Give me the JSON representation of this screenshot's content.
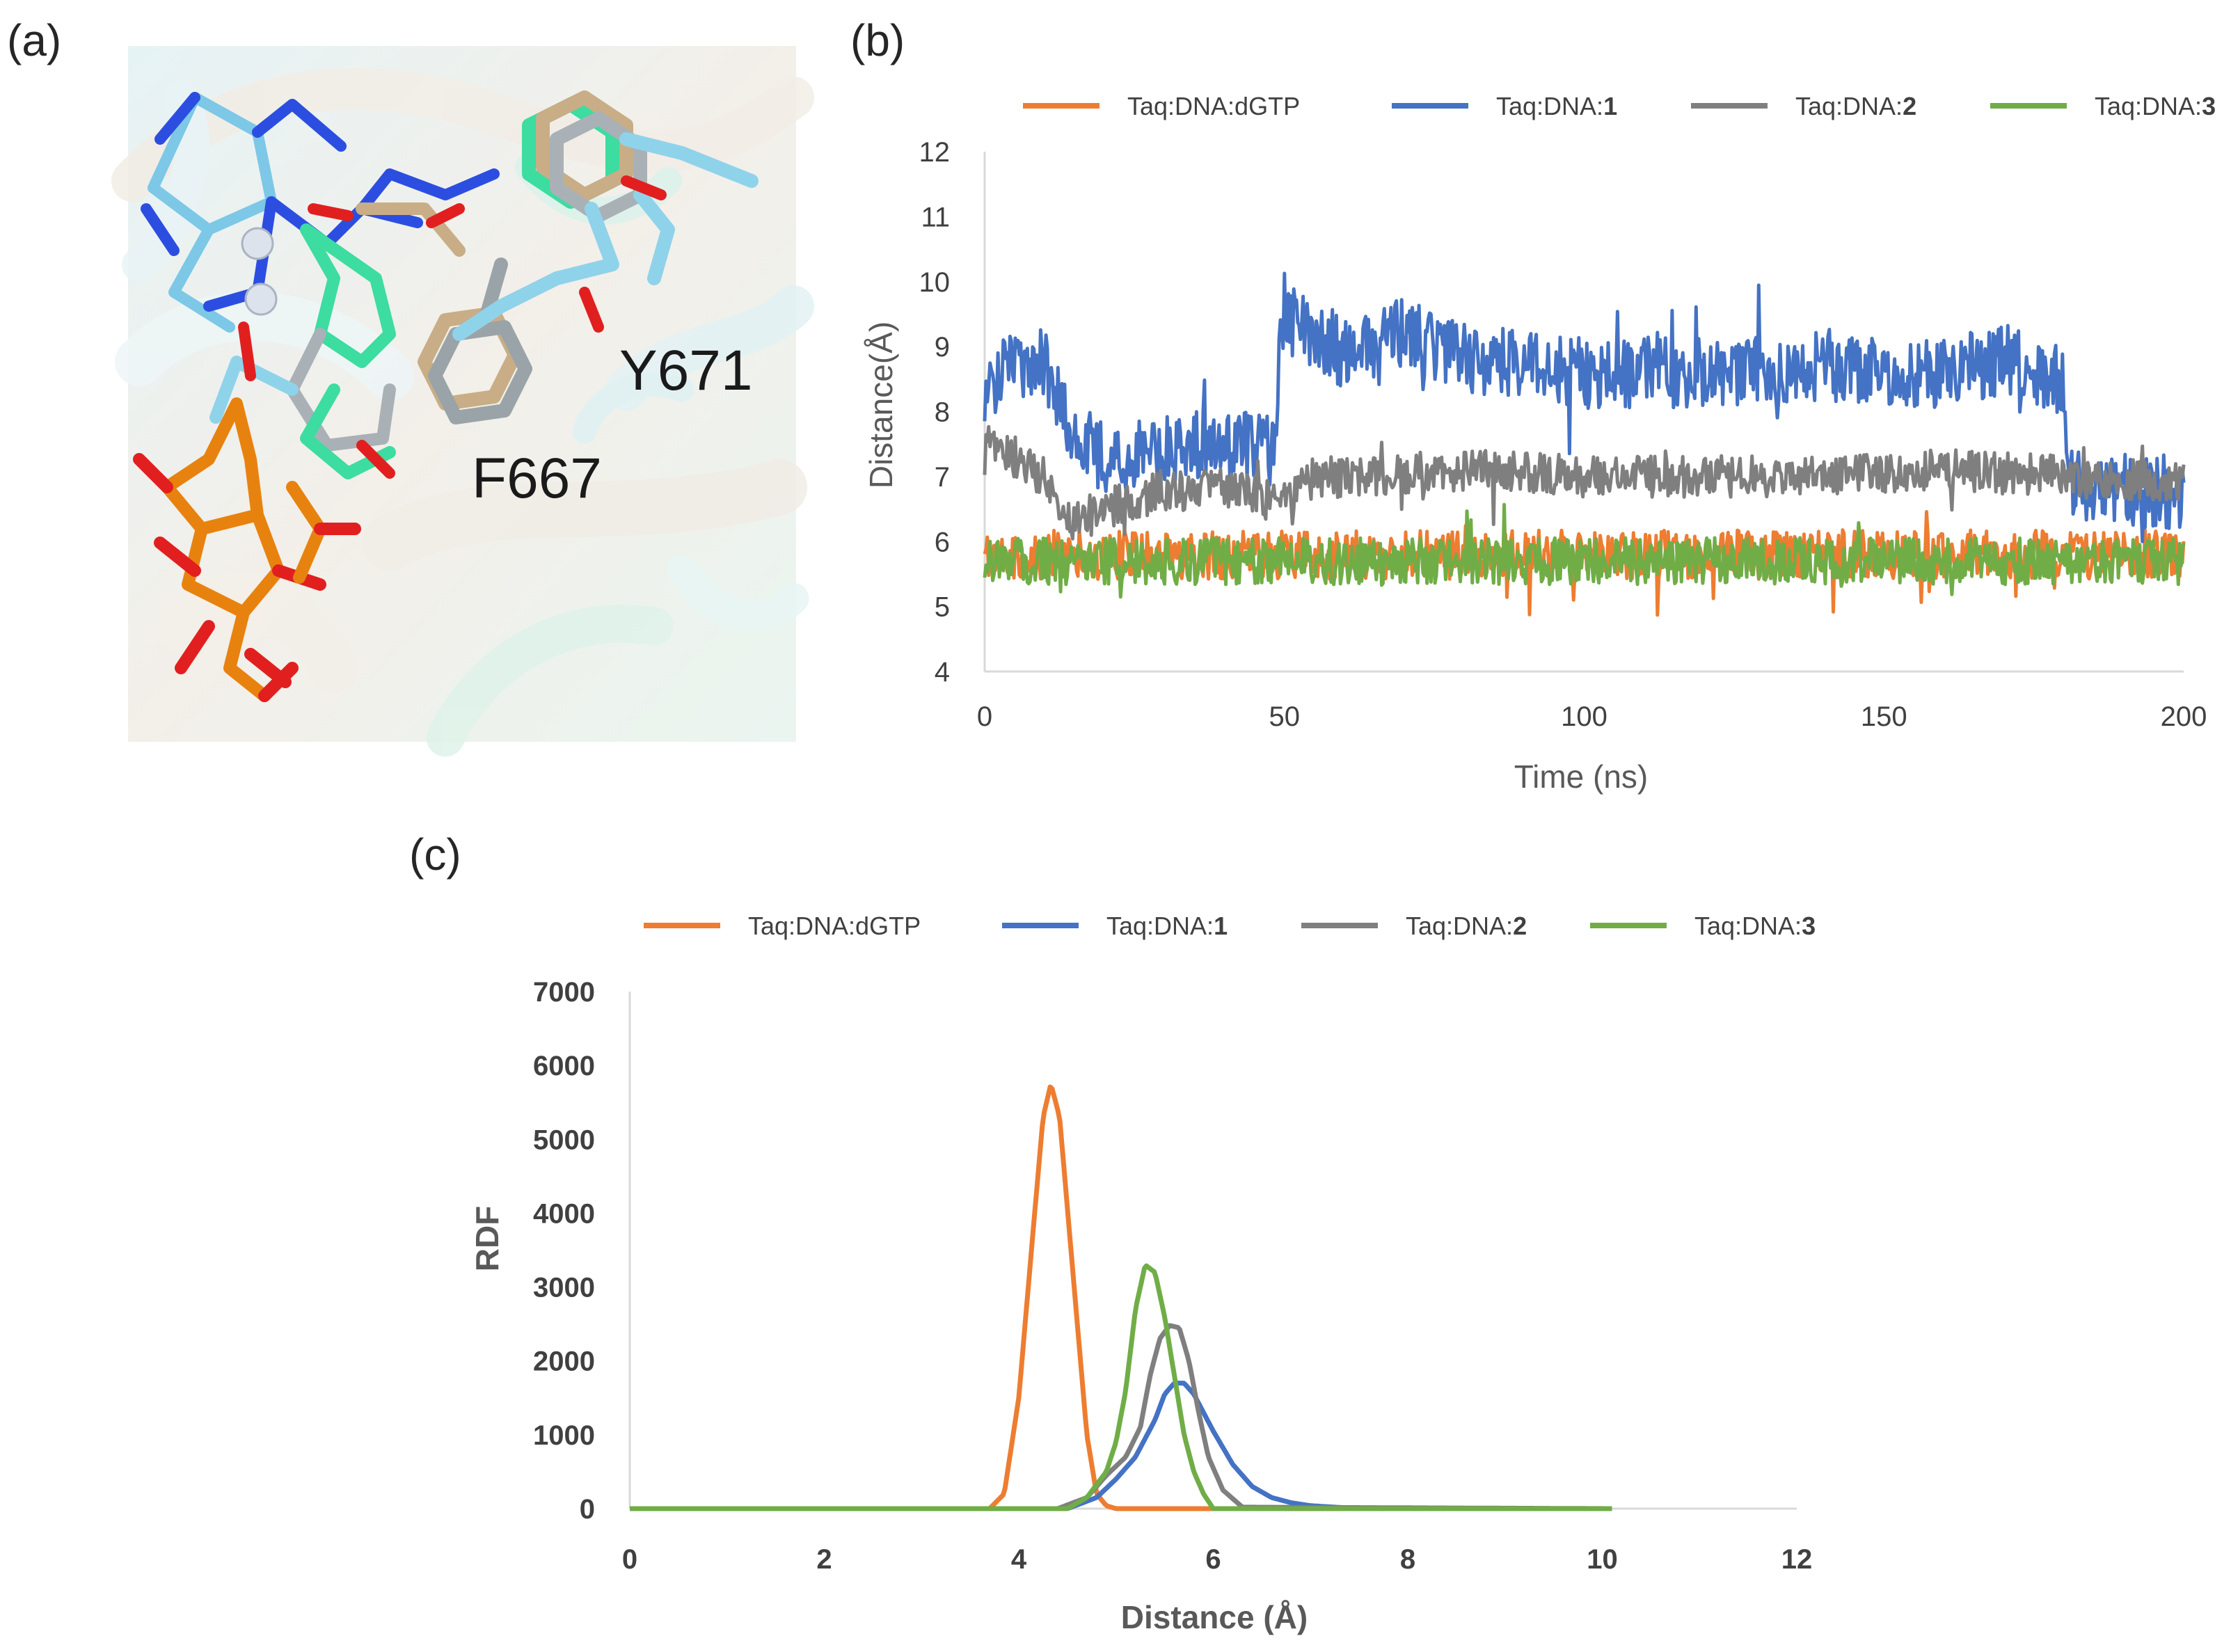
{
  "panels": {
    "a": "(a)",
    "b": "(b)",
    "c": "(c)"
  },
  "molecule": {
    "labels": [
      "Y671",
      "F667"
    ]
  },
  "colors": {
    "Taq:DNA:dGTP": "#ED7D31",
    "Taq:DNA:1": "#4472C4",
    "Taq:DNA:2": "#7F7F7F",
    "Taq:DNA:3": "#70AD47"
  },
  "chart_data": [
    {
      "type": "line",
      "title": "",
      "xlabel": "Time (ns)",
      "ylabel": "Distance(Å)",
      "xlim": [
        0,
        200
      ],
      "ylim": [
        4,
        12
      ],
      "xticks": [
        "0",
        "50",
        "100",
        "150",
        "200"
      ],
      "yticks": [
        "4",
        "5",
        "6",
        "7",
        "8",
        "9",
        "10",
        "11",
        "12"
      ],
      "legend_position": "top",
      "series": [
        {
          "name": "Taq:DNA:dGTP",
          "key": "dGTP",
          "x": [
            0,
            20,
            40,
            60,
            80,
            100,
            120,
            140,
            160,
            180,
            200
          ],
          "values": [
            5.8,
            5.8,
            5.8,
            5.8,
            5.8,
            5.8,
            5.8,
            5.8,
            5.8,
            5.8,
            5.8
          ]
        },
        {
          "name": "Taq:DNA:1",
          "key": "c1",
          "x": [
            0,
            5,
            10,
            15,
            20,
            30,
            40,
            48,
            50,
            55,
            60,
            70,
            80,
            100,
            120,
            140,
            160,
            170,
            180,
            181,
            190,
            200
          ],
          "values": [
            8.3,
            8.8,
            8.7,
            7.6,
            7.3,
            7.4,
            7.5,
            7.4,
            9.6,
            9.2,
            8.9,
            9.2,
            8.8,
            8.6,
            8.6,
            8.7,
            8.6,
            8.8,
            8.5,
            6.9,
            6.8,
            6.7
          ]
        },
        {
          "name": "Taq:DNA:2",
          "key": "c2",
          "x": [
            0,
            5,
            10,
            15,
            20,
            30,
            40,
            50,
            55,
            60,
            80,
            100,
            120,
            140,
            160,
            180,
            200
          ],
          "values": [
            7.5,
            7.3,
            7.0,
            6.3,
            6.5,
            6.8,
            6.8,
            6.6,
            7.0,
            7.0,
            7.1,
            7.0,
            7.0,
            7.0,
            7.1,
            7.0,
            6.9
          ]
        },
        {
          "name": "Taq:DNA:3",
          "key": "c3",
          "x": [
            0,
            20,
            40,
            60,
            80,
            100,
            120,
            140,
            160,
            180,
            200
          ],
          "values": [
            5.7,
            5.7,
            5.7,
            5.7,
            5.7,
            5.7,
            5.7,
            5.7,
            5.7,
            5.7,
            5.7
          ]
        }
      ]
    },
    {
      "type": "line",
      "title": "",
      "xlabel": "Distance (Å)",
      "ylabel": "RDF",
      "xlim": [
        0,
        12
      ],
      "ylim": [
        0,
        7000
      ],
      "xticks": [
        "0",
        "2",
        "4",
        "6",
        "8",
        "10",
        "12"
      ],
      "yticks": [
        "0",
        "1000",
        "2000",
        "3000",
        "4000",
        "5000",
        "6000",
        "7000"
      ],
      "legend_position": "top",
      "series": [
        {
          "name": "Taq:DNA:dGTP",
          "key": "dGTP",
          "x": [
            0,
            3.7,
            3.85,
            4.0,
            4.15,
            4.25,
            4.33,
            4.42,
            4.55,
            4.7,
            4.8,
            4.9,
            5.0,
            10.1
          ],
          "values": [
            0,
            0,
            200,
            1500,
            3800,
            5300,
            5750,
            5300,
            3300,
            1000,
            200,
            40,
            0,
            0
          ]
        },
        {
          "name": "Taq:DNA:1",
          "key": "c1",
          "x": [
            0,
            4.5,
            4.8,
            5.0,
            5.2,
            5.4,
            5.5,
            5.6,
            5.7,
            5.8,
            5.9,
            6.0,
            6.2,
            6.4,
            6.6,
            6.8,
            7.0,
            7.5,
            10.1
          ],
          "values": [
            0,
            0,
            150,
            400,
            700,
            1200,
            1550,
            1700,
            1700,
            1550,
            1300,
            1050,
            600,
            300,
            150,
            80,
            40,
            0,
            0
          ]
        },
        {
          "name": "Taq:DNA:2",
          "key": "c2",
          "x": [
            0,
            4.4,
            4.7,
            4.9,
            5.1,
            5.25,
            5.35,
            5.45,
            5.55,
            5.65,
            5.75,
            5.85,
            5.95,
            6.1,
            6.3,
            10.1
          ],
          "values": [
            0,
            0,
            150,
            450,
            700,
            1100,
            1800,
            2300,
            2480,
            2450,
            2000,
            1300,
            700,
            250,
            20,
            0
          ]
        },
        {
          "name": "Taq:DNA:3",
          "key": "c3",
          "x": [
            0,
            4.5,
            4.7,
            4.9,
            5.0,
            5.1,
            5.2,
            5.3,
            5.4,
            5.5,
            5.6,
            5.7,
            5.8,
            5.9,
            6.0,
            10.1
          ],
          "values": [
            0,
            0,
            150,
            500,
            900,
            1600,
            2700,
            3300,
            3200,
            2600,
            1800,
            1000,
            500,
            200,
            0,
            0
          ]
        }
      ]
    }
  ]
}
